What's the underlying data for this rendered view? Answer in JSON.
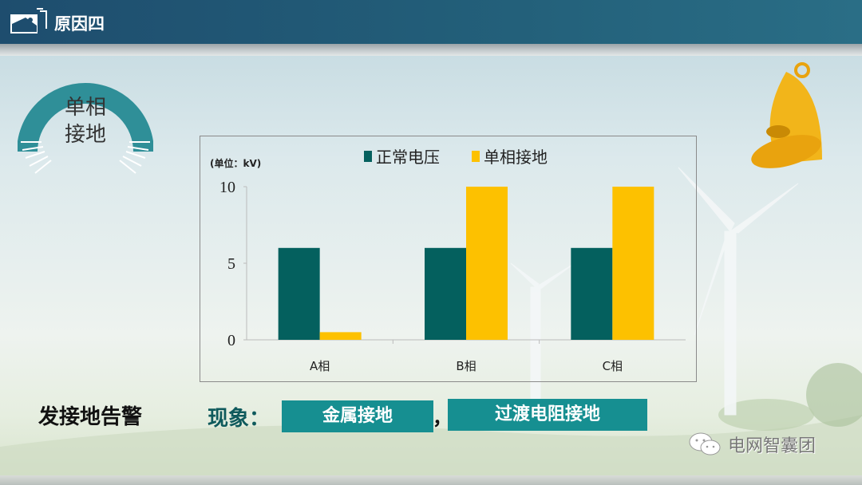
{
  "header": {
    "title": "原因四"
  },
  "badge": {
    "line1": "单相",
    "line2": "接地"
  },
  "chart_data": {
    "type": "bar",
    "unit_label": "(单位：kV)",
    "categories": [
      "A相",
      "B相",
      "C相"
    ],
    "series": [
      {
        "name": "正常电压",
        "color": "#04605e",
        "values": [
          6,
          6,
          6
        ]
      },
      {
        "name": "单相接地",
        "color": "#fdc100",
        "values": [
          0.5,
          10,
          10
        ]
      }
    ],
    "ylim": [
      0,
      10
    ],
    "yticks": [
      "0",
      "5",
      "10"
    ],
    "legend": "top",
    "grid": false
  },
  "footer": {
    "alarm": "发接地告警",
    "phenomenon_label": "现象：",
    "tags": [
      "金属接地",
      "过渡电阻接地"
    ],
    "separator": "，"
  },
  "watermark": "电网智囊团",
  "colors": {
    "header": "#1e4d6e",
    "tag": "#168f91",
    "teal": "#04605e",
    "yellow": "#fdc100"
  }
}
